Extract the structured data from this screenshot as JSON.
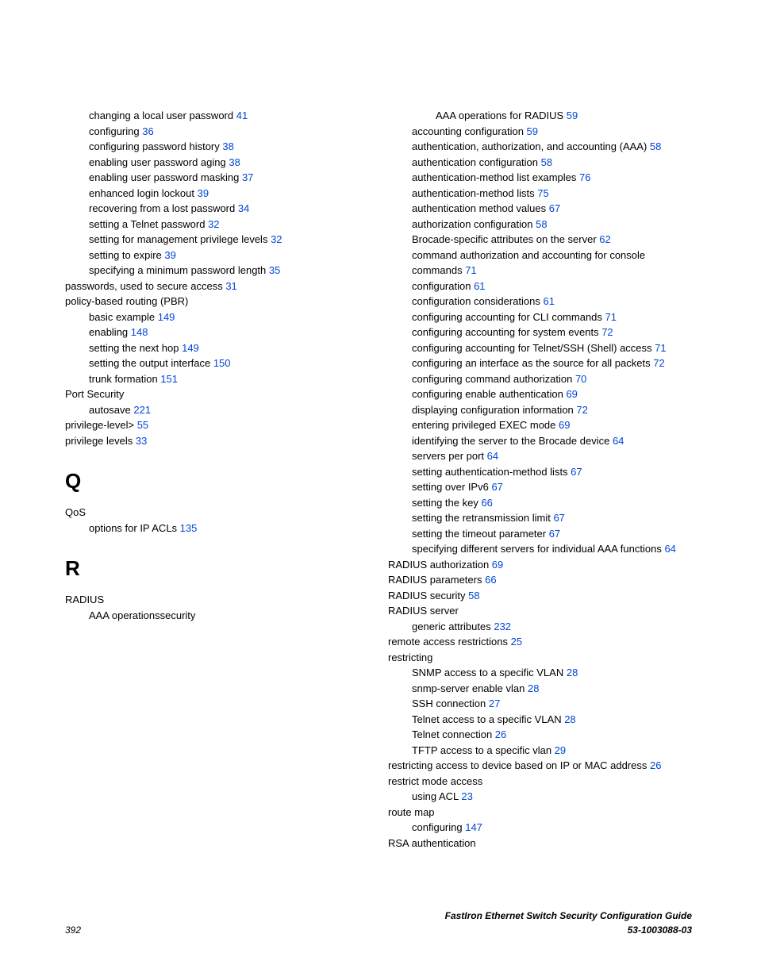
{
  "link_color": "#0046d5",
  "left_column": [
    {
      "type": "entry",
      "level": 1,
      "text": "changing a local user password ",
      "page": "41"
    },
    {
      "type": "entry",
      "level": 1,
      "text": "configuring ",
      "page": "36"
    },
    {
      "type": "entry",
      "level": 1,
      "text": "configuring password history ",
      "page": "38"
    },
    {
      "type": "entry",
      "level": 1,
      "text": "enabling user password aging ",
      "page": "38"
    },
    {
      "type": "entry",
      "level": 1,
      "text": "enabling user password masking ",
      "page": "37"
    },
    {
      "type": "entry",
      "level": 1,
      "text": "enhanced login lockout ",
      "page": "39"
    },
    {
      "type": "entry",
      "level": 1,
      "text": "recovering from a lost password ",
      "page": "34"
    },
    {
      "type": "entry",
      "level": 1,
      "text": "setting a Telnet password ",
      "page": "32"
    },
    {
      "type": "entry",
      "level": 1,
      "text": "setting for management privilege levels ",
      "page": "32"
    },
    {
      "type": "entry",
      "level": 1,
      "text": "setting to expire ",
      "page": "39"
    },
    {
      "type": "entry",
      "level": 1,
      "text": "specifying a minimum password length ",
      "page": "35"
    },
    {
      "type": "entry",
      "level": 0,
      "text": "passwords, used to secure access ",
      "page": "31"
    },
    {
      "type": "entry",
      "level": 0,
      "text": "policy-based routing (PBR)",
      "page": ""
    },
    {
      "type": "entry",
      "level": 1,
      "text": "basic example ",
      "page": "149"
    },
    {
      "type": "entry",
      "level": 1,
      "text": "enabling ",
      "page": "148"
    },
    {
      "type": "entry",
      "level": 1,
      "text": "setting the next hop ",
      "page": "149"
    },
    {
      "type": "entry",
      "level": 1,
      "text": "setting the output interface ",
      "page": "150"
    },
    {
      "type": "entry",
      "level": 1,
      "text": "trunk formation ",
      "page": "151"
    },
    {
      "type": "entry",
      "level": 0,
      "text": "Port Security",
      "page": ""
    },
    {
      "type": "entry",
      "level": 1,
      "text": "autosave ",
      "page": "221"
    },
    {
      "type": "entry",
      "level": 0,
      "text": "privilege-level> ",
      "page": "55"
    },
    {
      "type": "entry",
      "level": 0,
      "text": "privilege levels ",
      "page": "33"
    },
    {
      "type": "heading",
      "label": "Q"
    },
    {
      "type": "entry",
      "level": 0,
      "text": "QoS",
      "page": ""
    },
    {
      "type": "entry",
      "level": 1,
      "text": "options for IP ACLs ",
      "page": "135"
    },
    {
      "type": "heading",
      "label": "R"
    },
    {
      "type": "entry",
      "level": 0,
      "text": "RADIUS",
      "page": ""
    },
    {
      "type": "entry",
      "level": 1,
      "text": "AAA operationssecurity",
      "page": ""
    }
  ],
  "right_column": [
    {
      "type": "entry",
      "level": 2,
      "text": "AAA operations for RADIUS ",
      "page": "59"
    },
    {
      "type": "entry",
      "level": 1,
      "text": "accounting configuration ",
      "page": "59"
    },
    {
      "type": "entry",
      "level": 1,
      "text": "authentication, authorization, and accounting (AAA) ",
      "page": "58"
    },
    {
      "type": "entry",
      "level": 1,
      "text": "authentication configuration ",
      "page": "58"
    },
    {
      "type": "entry",
      "level": 1,
      "text": "authentication-method list examples ",
      "page": "76"
    },
    {
      "type": "entry",
      "level": 1,
      "text": "authentication-method lists ",
      "page": "75"
    },
    {
      "type": "entry",
      "level": 1,
      "text": "authentication method values ",
      "page": "67"
    },
    {
      "type": "entry",
      "level": 1,
      "text": "authorization configuration ",
      "page": "58"
    },
    {
      "type": "entry",
      "level": 1,
      "text": "Brocade-specific attributes on the server ",
      "page": "62"
    },
    {
      "type": "entry",
      "level": 1,
      "text": "command authorization and accounting for console commands ",
      "page": "71"
    },
    {
      "type": "entry",
      "level": 1,
      "text": "configuration ",
      "page": "61"
    },
    {
      "type": "entry",
      "level": 1,
      "text": "configuration considerations ",
      "page": "61"
    },
    {
      "type": "entry",
      "level": 1,
      "text": "configuring accounting for CLI commands ",
      "page": "71"
    },
    {
      "type": "entry",
      "level": 1,
      "text": "configuring accounting for system events ",
      "page": "72"
    },
    {
      "type": "entry",
      "level": 1,
      "text": "configuring accounting for Telnet/SSH (Shell) access ",
      "page": "71"
    },
    {
      "type": "entry",
      "level": 1,
      "text": "configuring an interface as the source for all packets ",
      "page": "72"
    },
    {
      "type": "entry",
      "level": 1,
      "text": "configuring command authorization ",
      "page": "70"
    },
    {
      "type": "entry",
      "level": 1,
      "text": "configuring enable authentication ",
      "page": "69"
    },
    {
      "type": "entry",
      "level": 1,
      "text": "displaying configuration information ",
      "page": "72"
    },
    {
      "type": "entry",
      "level": 1,
      "text": "entering privileged EXEC mode ",
      "page": "69"
    },
    {
      "type": "entry",
      "level": 1,
      "text": "identifying the server to the Brocade device ",
      "page": "64"
    },
    {
      "type": "entry",
      "level": 1,
      "text": "servers per port ",
      "page": "64"
    },
    {
      "type": "entry",
      "level": 1,
      "text": "setting authentication-method lists ",
      "page": "67"
    },
    {
      "type": "entry",
      "level": 1,
      "text": "setting over IPv6 ",
      "page": "67"
    },
    {
      "type": "entry",
      "level": 1,
      "text": "setting the key ",
      "page": "66"
    },
    {
      "type": "entry",
      "level": 1,
      "text": "setting the retransmission limit ",
      "page": "67"
    },
    {
      "type": "entry",
      "level": 1,
      "text": "setting the timeout parameter ",
      "page": "67"
    },
    {
      "type": "entry",
      "level": 1,
      "text": "specifying different servers for individual AAA functions ",
      "page": "64"
    },
    {
      "type": "entry",
      "level": 0,
      "text": "RADIUS authorization ",
      "page": "69"
    },
    {
      "type": "entry",
      "level": 0,
      "text": "RADIUS parameters ",
      "page": "66"
    },
    {
      "type": "entry",
      "level": 0,
      "text": "RADIUS security ",
      "page": "58"
    },
    {
      "type": "entry",
      "level": 0,
      "text": "RADIUS server",
      "page": ""
    },
    {
      "type": "entry",
      "level": 1,
      "text": "generic attributes ",
      "page": "232"
    },
    {
      "type": "entry",
      "level": 0,
      "text": "remote access restrictions ",
      "page": "25"
    },
    {
      "type": "entry",
      "level": 0,
      "text": "restricting",
      "page": ""
    },
    {
      "type": "entry",
      "level": 1,
      "text": "SNMP access to a specific VLAN ",
      "page": "28"
    },
    {
      "type": "entry",
      "level": 1,
      "text": "snmp-server enable vlan ",
      "page": "28"
    },
    {
      "type": "entry",
      "level": 1,
      "text": "SSH connection ",
      "page": "27"
    },
    {
      "type": "entry",
      "level": 1,
      "text": "Telnet access to a specific VLAN ",
      "page": "28"
    },
    {
      "type": "entry",
      "level": 1,
      "text": "Telnet connection ",
      "page": "26"
    },
    {
      "type": "entry",
      "level": 1,
      "text": "TFTP access to a specific vlan ",
      "page": "29"
    },
    {
      "type": "entry",
      "level": 0,
      "text": "restricting access to device based on IP or MAC address ",
      "page": "26"
    },
    {
      "type": "entry",
      "level": 0,
      "text": "restrict mode access",
      "page": ""
    },
    {
      "type": "entry",
      "level": 1,
      "text": "using ACL ",
      "page": "23"
    },
    {
      "type": "entry",
      "level": 0,
      "text": "route map",
      "page": ""
    },
    {
      "type": "entry",
      "level": 1,
      "text": "configuring ",
      "page": "147"
    },
    {
      "type": "entry",
      "level": 0,
      "text": "RSA authentication",
      "page": ""
    }
  ],
  "footer": {
    "page_number": "392",
    "title": "FastIron Ethernet Switch Security Configuration Guide",
    "doc_id": "53-1003088-03"
  }
}
